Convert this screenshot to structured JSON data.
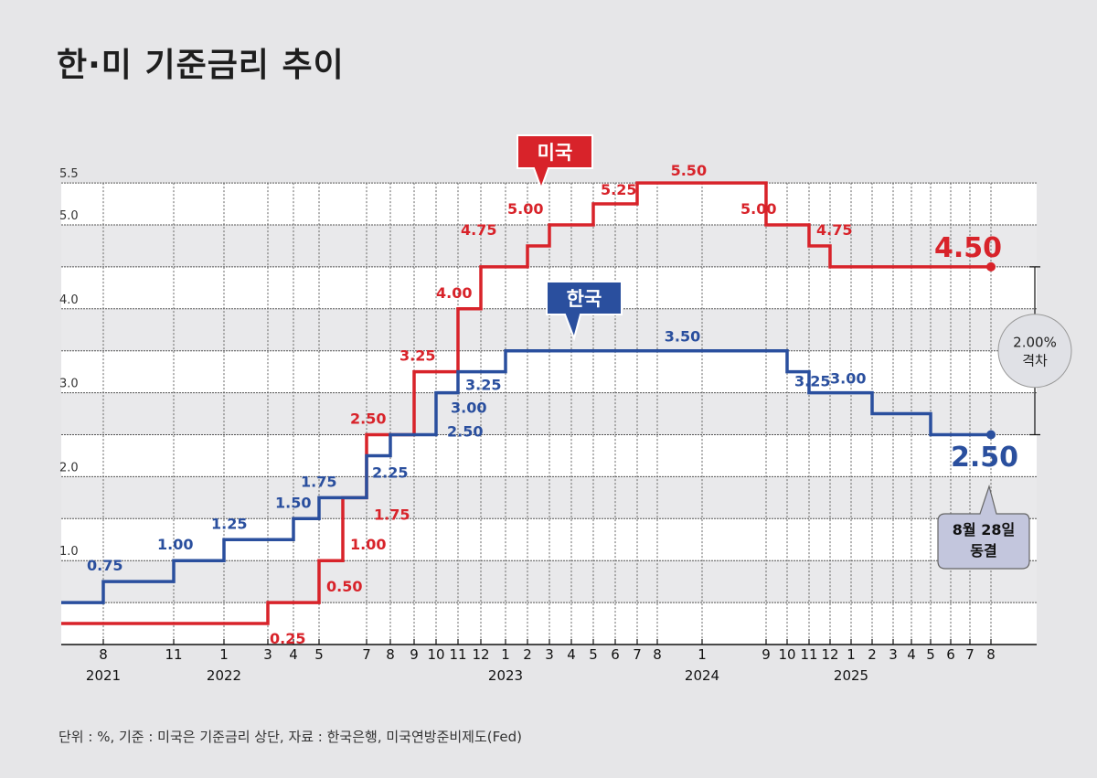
{
  "title": "한·미 기준금리 추이",
  "footnote": "단위 : %, 기준 : 미국은 기준금리 상단, 자료 : 한국은행, 미국연방준비제도(Fed)",
  "chart_data": {
    "type": "line",
    "step": true,
    "title": "한·미 기준금리 추이",
    "ylim": [
      0,
      5.5
    ],
    "y_ticks": [
      "1.0",
      "2.0",
      "3.0",
      "4.0",
      "5.0",
      "5.5"
    ],
    "x_ticks": [
      "8",
      "11",
      "1",
      "3",
      "4",
      "5",
      "7",
      "8",
      "9",
      "10",
      "11",
      "12",
      "1",
      "2",
      "3",
      "4",
      "5",
      "6",
      "7",
      "8",
      "1",
      "9",
      "10",
      "11",
      "12",
      "1",
      "2",
      "3",
      "4",
      "5",
      "6",
      "7",
      "8"
    ],
    "year_labels": [
      "2021",
      "2022",
      "2023",
      "2024",
      "2025"
    ],
    "grid": true,
    "colors": {
      "us": "#d8232a",
      "kr": "#2a4f9e"
    },
    "series": [
      {
        "name": "미국",
        "points": [
          [
            "2021-06",
            0.25
          ],
          [
            "2022-03",
            0.5
          ],
          [
            "2022-05",
            1.0
          ],
          [
            "2022-06",
            1.75
          ],
          [
            "2022-07",
            2.5
          ],
          [
            "2022-09",
            3.25
          ],
          [
            "2022-11",
            4.0
          ],
          [
            "2022-12",
            4.5
          ],
          [
            "2023-02",
            4.75
          ],
          [
            "2023-03",
            5.0
          ],
          [
            "2023-05",
            5.25
          ],
          [
            "2023-07",
            5.5
          ],
          [
            "2024-09",
            5.0
          ],
          [
            "2024-11",
            4.75
          ],
          [
            "2024-12",
            4.5
          ],
          [
            "2025-08",
            4.5
          ]
        ],
        "labels": [
          {
            "date": "2022-03",
            "text": "0.25"
          },
          {
            "date": "2022-05",
            "text": "0.50"
          },
          {
            "date": "2022-06",
            "text": "1.00"
          },
          {
            "date": "2022-07",
            "text": "1.75"
          },
          {
            "date": "2022-07",
            "text": "2.50"
          },
          {
            "date": "2022-09",
            "text": "3.25"
          },
          {
            "date": "2022-11",
            "text": "4.00"
          },
          {
            "date": "2022-12",
            "text": "4.75"
          },
          {
            "date": "2023-02",
            "text": "5.00"
          },
          {
            "date": "2023-05",
            "text": "5.25"
          },
          {
            "date": "2023-10",
            "text": "5.50"
          },
          {
            "date": "2024-09",
            "text": "5.00"
          },
          {
            "date": "2024-11",
            "text": "4.75"
          }
        ],
        "end_label": "4.50"
      },
      {
        "name": "한국",
        "points": [
          [
            "2021-06",
            0.5
          ],
          [
            "2021-08",
            0.75
          ],
          [
            "2021-11",
            1.0
          ],
          [
            "2022-01",
            1.25
          ],
          [
            "2022-04",
            1.5
          ],
          [
            "2022-05",
            1.75
          ],
          [
            "2022-07",
            2.25
          ],
          [
            "2022-08",
            2.5
          ],
          [
            "2022-10",
            3.0
          ],
          [
            "2022-11",
            3.25
          ],
          [
            "2023-01",
            3.5
          ],
          [
            "2024-10",
            3.25
          ],
          [
            "2024-11",
            3.0
          ],
          [
            "2025-02",
            2.75
          ],
          [
            "2025-05",
            2.5
          ],
          [
            "2025-08",
            2.5
          ]
        ],
        "labels": [
          {
            "date": "2021-08",
            "text": "0.75"
          },
          {
            "date": "2021-11",
            "text": "1.00"
          },
          {
            "date": "2022-01",
            "text": "1.25"
          },
          {
            "date": "2022-04",
            "text": "1.50"
          },
          {
            "date": "2022-05",
            "text": "1.75"
          },
          {
            "date": "2022-07",
            "text": "2.25"
          },
          {
            "date": "2022-10",
            "text": "2.50"
          },
          {
            "date": "2022-10",
            "text": "3.00"
          },
          {
            "date": "2022-11",
            "text": "3.25"
          },
          {
            "date": "2023-09",
            "text": "3.50"
          },
          {
            "date": "2024-10",
            "text": "3.25"
          },
          {
            "date": "2024-12",
            "text": "3.00"
          }
        ],
        "end_label": "2.50"
      }
    ],
    "annotations": {
      "us_tag": "미국",
      "kr_tag": "한국",
      "gap_line1": "2.00%",
      "gap_line2": "격차",
      "note_line1": "8월 28일",
      "note_line2": "동결"
    }
  }
}
